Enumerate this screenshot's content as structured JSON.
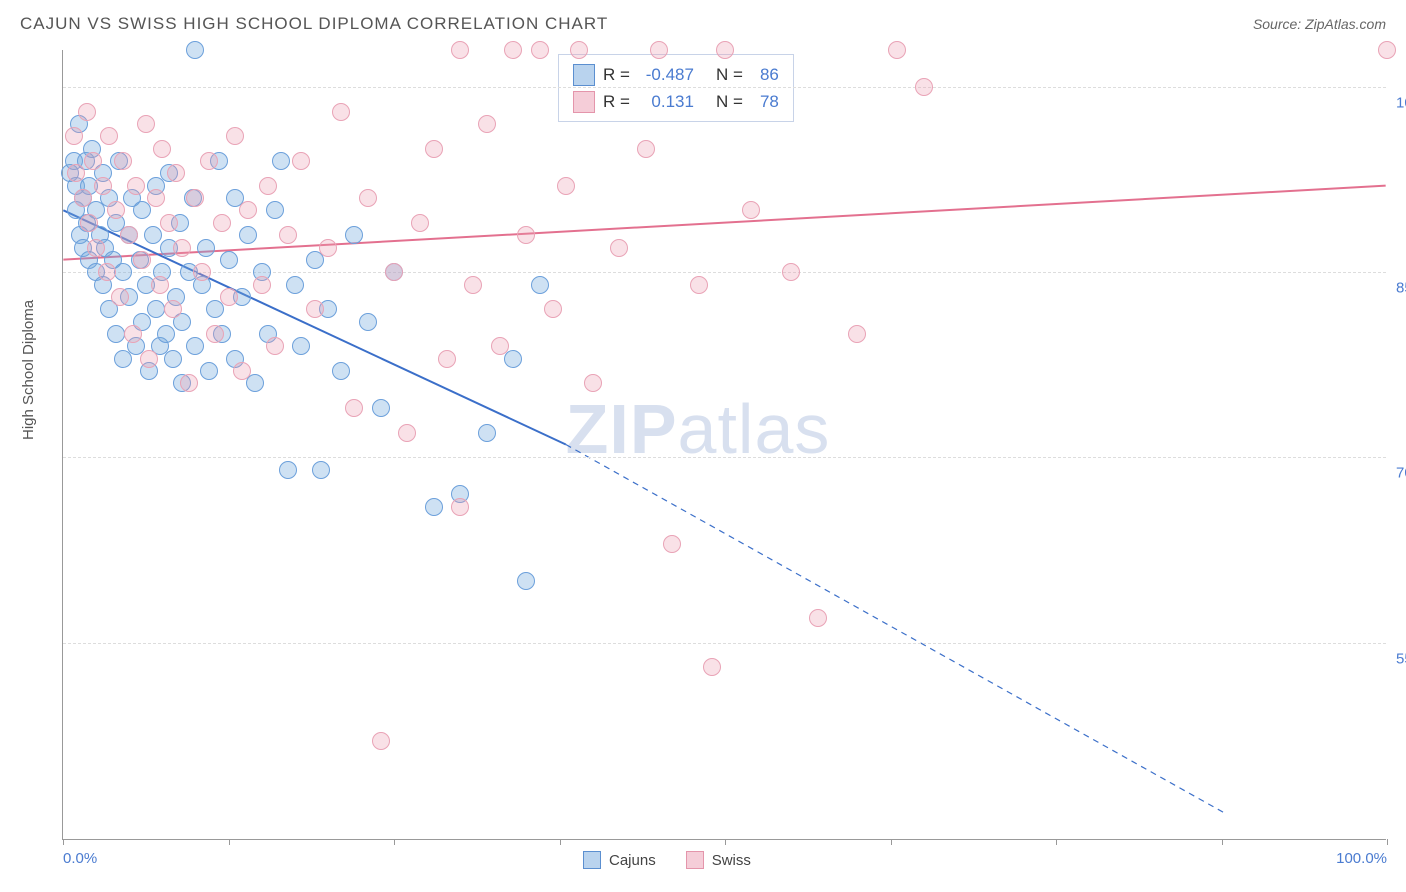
{
  "title": "CAJUN VS SWISS HIGH SCHOOL DIPLOMA CORRELATION CHART",
  "source": "Source: ZipAtlas.com",
  "y_axis_label": "High School Diploma",
  "watermark": {
    "bold": "ZIP",
    "light": "atlas"
  },
  "chart": {
    "type": "scatter",
    "xlim": [
      0,
      100
    ],
    "ylim": [
      39,
      103
    ],
    "x_ticks": [
      0,
      12.5,
      25,
      37.5,
      50,
      62.5,
      75,
      87.5,
      100
    ],
    "x_tick_labels": {
      "0": "0.0%",
      "100": "100.0%"
    },
    "y_gridlines": [
      55,
      70,
      85,
      100
    ],
    "y_tick_labels": [
      "55.0%",
      "70.0%",
      "85.0%",
      "100.0%"
    ],
    "background_color": "#ffffff",
    "grid_color": "#dddddd",
    "axis_color": "#999999",
    "tick_label_color": "#4a7bd0",
    "series": [
      {
        "name": "Cajuns",
        "color_fill": "rgba(116,168,222,0.35)",
        "color_stroke": "#6ca0db",
        "marker_radius": 9,
        "R": "-0.487",
        "N": "86",
        "trend": {
          "x1": 0,
          "y1": 90,
          "x2_solid": 38,
          "y2_solid": 71,
          "x2_dash": 88,
          "y2_dash": 41,
          "stroke": "#3b6fc9",
          "width": 2
        },
        "points": [
          [
            0.5,
            93
          ],
          [
            0.8,
            94
          ],
          [
            1,
            92
          ],
          [
            1,
            90
          ],
          [
            1.2,
            97
          ],
          [
            1.3,
            88
          ],
          [
            1.5,
            91
          ],
          [
            1.5,
            87
          ],
          [
            1.7,
            94
          ],
          [
            1.8,
            89
          ],
          [
            2,
            86
          ],
          [
            2,
            92
          ],
          [
            2.2,
            95
          ],
          [
            2.5,
            85
          ],
          [
            2.5,
            90
          ],
          [
            2.8,
            88
          ],
          [
            3,
            93
          ],
          [
            3,
            84
          ],
          [
            3.2,
            87
          ],
          [
            3.5,
            91
          ],
          [
            3.5,
            82
          ],
          [
            3.8,
            86
          ],
          [
            4,
            89
          ],
          [
            4,
            80
          ],
          [
            4.2,
            94
          ],
          [
            4.5,
            85
          ],
          [
            4.5,
            78
          ],
          [
            5,
            88
          ],
          [
            5,
            83
          ],
          [
            5.2,
            91
          ],
          [
            5.5,
            79
          ],
          [
            5.8,
            86
          ],
          [
            6,
            81
          ],
          [
            6,
            90
          ],
          [
            6.3,
            84
          ],
          [
            6.5,
            77
          ],
          [
            6.8,
            88
          ],
          [
            7,
            82
          ],
          [
            7,
            92
          ],
          [
            7.3,
            79
          ],
          [
            7.5,
            85
          ],
          [
            7.8,
            80
          ],
          [
            8,
            87
          ],
          [
            8,
            93
          ],
          [
            8.3,
            78
          ],
          [
            8.5,
            83
          ],
          [
            8.8,
            89
          ],
          [
            9,
            81
          ],
          [
            9,
            76
          ],
          [
            9.5,
            85
          ],
          [
            9.8,
            91
          ],
          [
            10,
            103
          ],
          [
            10,
            79
          ],
          [
            10.5,
            84
          ],
          [
            10.8,
            87
          ],
          [
            11,
            77
          ],
          [
            11.5,
            82
          ],
          [
            11.8,
            94
          ],
          [
            12,
            80
          ],
          [
            12.5,
            86
          ],
          [
            13,
            91
          ],
          [
            13,
            78
          ],
          [
            13.5,
            83
          ],
          [
            14,
            88
          ],
          [
            14.5,
            76
          ],
          [
            15,
            85
          ],
          [
            15.5,
            80
          ],
          [
            16,
            90
          ],
          [
            16.5,
            94
          ],
          [
            17,
            69
          ],
          [
            17.5,
            84
          ],
          [
            18,
            79
          ],
          [
            19,
            86
          ],
          [
            19.5,
            69
          ],
          [
            20,
            82
          ],
          [
            21,
            77
          ],
          [
            22,
            88
          ],
          [
            23,
            81
          ],
          [
            24,
            74
          ],
          [
            25,
            85
          ],
          [
            28,
            66
          ],
          [
            30,
            67
          ],
          [
            32,
            72
          ],
          [
            34,
            78
          ],
          [
            35,
            60
          ],
          [
            36,
            84
          ]
        ]
      },
      {
        "name": "Swiss",
        "color_fill": "rgba(236,156,177,0.30)",
        "color_stroke": "#e9a3b6",
        "marker_radius": 9,
        "R": "0.131",
        "N": "78",
        "trend": {
          "x1": 0,
          "y1": 86,
          "x2": 100,
          "y2": 92,
          "stroke": "#e3708f",
          "width": 2
        },
        "points": [
          [
            0.8,
            96
          ],
          [
            1,
            93
          ],
          [
            1.5,
            91
          ],
          [
            1.8,
            98
          ],
          [
            2,
            89
          ],
          [
            2.3,
            94
          ],
          [
            2.5,
            87
          ],
          [
            3,
            92
          ],
          [
            3.3,
            85
          ],
          [
            3.5,
            96
          ],
          [
            4,
            90
          ],
          [
            4.3,
            83
          ],
          [
            4.5,
            94
          ],
          [
            5,
            88
          ],
          [
            5.3,
            80
          ],
          [
            5.5,
            92
          ],
          [
            6,
            86
          ],
          [
            6.3,
            97
          ],
          [
            6.5,
            78
          ],
          [
            7,
            91
          ],
          [
            7.3,
            84
          ],
          [
            7.5,
            95
          ],
          [
            8,
            89
          ],
          [
            8.3,
            82
          ],
          [
            8.5,
            93
          ],
          [
            9,
            87
          ],
          [
            9.5,
            76
          ],
          [
            10,
            91
          ],
          [
            10.5,
            85
          ],
          [
            11,
            94
          ],
          [
            11.5,
            80
          ],
          [
            12,
            89
          ],
          [
            12.5,
            83
          ],
          [
            13,
            96
          ],
          [
            13.5,
            77
          ],
          [
            14,
            90
          ],
          [
            15,
            84
          ],
          [
            15.5,
            92
          ],
          [
            16,
            79
          ],
          [
            17,
            88
          ],
          [
            18,
            94
          ],
          [
            19,
            82
          ],
          [
            20,
            87
          ],
          [
            21,
            98
          ],
          [
            22,
            74
          ],
          [
            23,
            91
          ],
          [
            24,
            47
          ],
          [
            25,
            85
          ],
          [
            26,
            72
          ],
          [
            27,
            89
          ],
          [
            28,
            95
          ],
          [
            29,
            78
          ],
          [
            30,
            103
          ],
          [
            30,
            66
          ],
          [
            31,
            84
          ],
          [
            32,
            97
          ],
          [
            33,
            79
          ],
          [
            34,
            103
          ],
          [
            35,
            88
          ],
          [
            36,
            103
          ],
          [
            37,
            82
          ],
          [
            38,
            92
          ],
          [
            39,
            103
          ],
          [
            40,
            76
          ],
          [
            42,
            87
          ],
          [
            44,
            95
          ],
          [
            45,
            103
          ],
          [
            46,
            63
          ],
          [
            48,
            84
          ],
          [
            49,
            53
          ],
          [
            50,
            103
          ],
          [
            52,
            90
          ],
          [
            55,
            85
          ],
          [
            57,
            57
          ],
          [
            60,
            80
          ],
          [
            63,
            103
          ],
          [
            65,
            100
          ],
          [
            100,
            103
          ]
        ]
      }
    ]
  },
  "legend_box": {
    "rows": [
      {
        "swatch": "blue",
        "r_label": "R =",
        "r_val": "-0.487",
        "n_label": "N =",
        "n_val": "86"
      },
      {
        "swatch": "pink",
        "r_label": "R =",
        "r_val": "0.131",
        "n_label": "N =",
        "n_val": "78"
      }
    ]
  },
  "bottom_legend": [
    {
      "swatch": "blue",
      "label": "Cajuns"
    },
    {
      "swatch": "pink",
      "label": "Swiss"
    }
  ]
}
